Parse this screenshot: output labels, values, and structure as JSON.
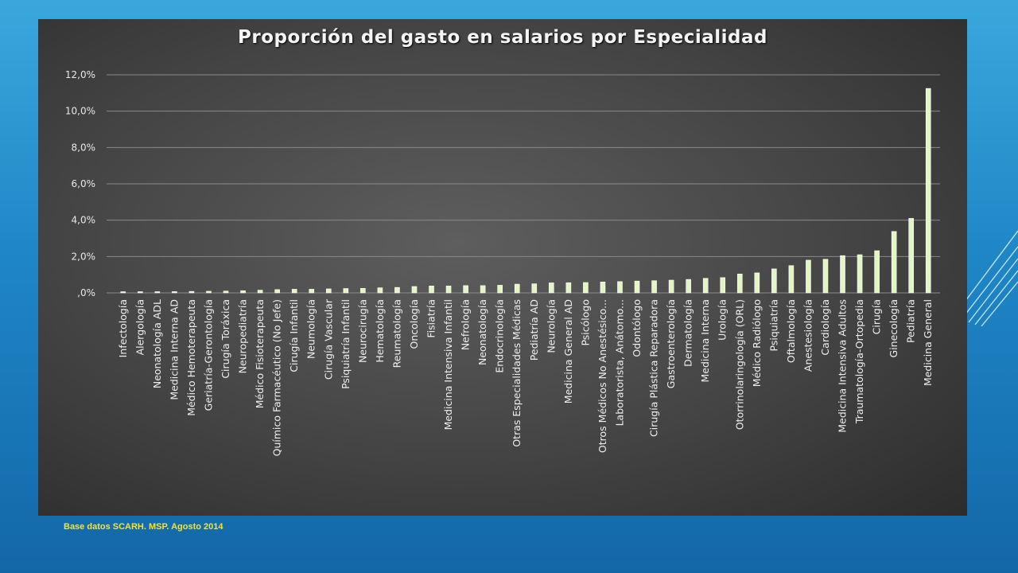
{
  "source_note": "Base datos SCARH. MSP. Agosto 2014",
  "colors": {
    "bar_fill": "#e4f5c4",
    "bar_stroke": "#ffffff",
    "panel": "#4a4a4a",
    "background": "#1f86c6",
    "source_text": "#f2e33a"
  },
  "chart_data": {
    "type": "bar",
    "title": "Proporción del gasto en salarios por Especialidad",
    "xlabel": "",
    "ylabel": "",
    "ylim": [
      0,
      12
    ],
    "y_ticks": [
      ",0%",
      "2,0%",
      "4,0%",
      "6,0%",
      "8,0%",
      "10,0%",
      "12,0%"
    ],
    "grid": true,
    "legend": "none",
    "categories": [
      "Infectología",
      "Alergología",
      "Neonatología ADL",
      "Medicina Interna AD",
      "Médico Hemoterapeuta",
      "Geriatría-Gerontología",
      "Cirugía Toráxica",
      "Neuropediatría",
      "Médico Fisioterapeuta",
      "Químico Farmacéutico (No Jefe)",
      "Cirugía Infantil",
      "Neumología",
      "Cirugía Vascular",
      "Psiquiatría Infantil",
      "Neurocirugía",
      "Hematología",
      "Reumatología",
      "Oncología",
      "Fisiatría",
      "Medicina Intensiva Infantil",
      "Nefrología",
      "Neonatología",
      "Endocrinología",
      "Otras Especialidades Médicas",
      "Pediatría AD",
      "Neurología",
      "Medicina General AD",
      "Psicólogo",
      "Otros Médicos No Anestésico...",
      "Laboratorista, Anátomo...",
      "Odontólogo",
      "Cirugía Plástica Reparadora",
      "Gastroenterología",
      "Dermatología",
      "Medicina Interna",
      "Urología",
      "Otorrinolaringología (ORL)",
      "Médico Radiólogo",
      "Psiquiatría",
      "Oftalmología",
      "Anestesiología",
      "Cardiología",
      "Medicina Intensiva Adultos",
      "Traumatología-Ortopedia",
      "Cirugía",
      "Ginecología",
      "Pediatría",
      "Medicina General"
    ],
    "values": [
      0.05,
      0.05,
      0.06,
      0.07,
      0.08,
      0.09,
      0.1,
      0.12,
      0.15,
      0.18,
      0.2,
      0.2,
      0.22,
      0.24,
      0.25,
      0.28,
      0.3,
      0.35,
      0.38,
      0.38,
      0.4,
      0.4,
      0.42,
      0.48,
      0.5,
      0.55,
      0.56,
      0.57,
      0.6,
      0.62,
      0.65,
      0.67,
      0.7,
      0.74,
      0.8,
      0.84,
      1.04,
      1.1,
      1.32,
      1.5,
      1.8,
      1.85,
      2.05,
      2.1,
      2.32,
      3.38,
      4.1,
      11.25
    ]
  }
}
